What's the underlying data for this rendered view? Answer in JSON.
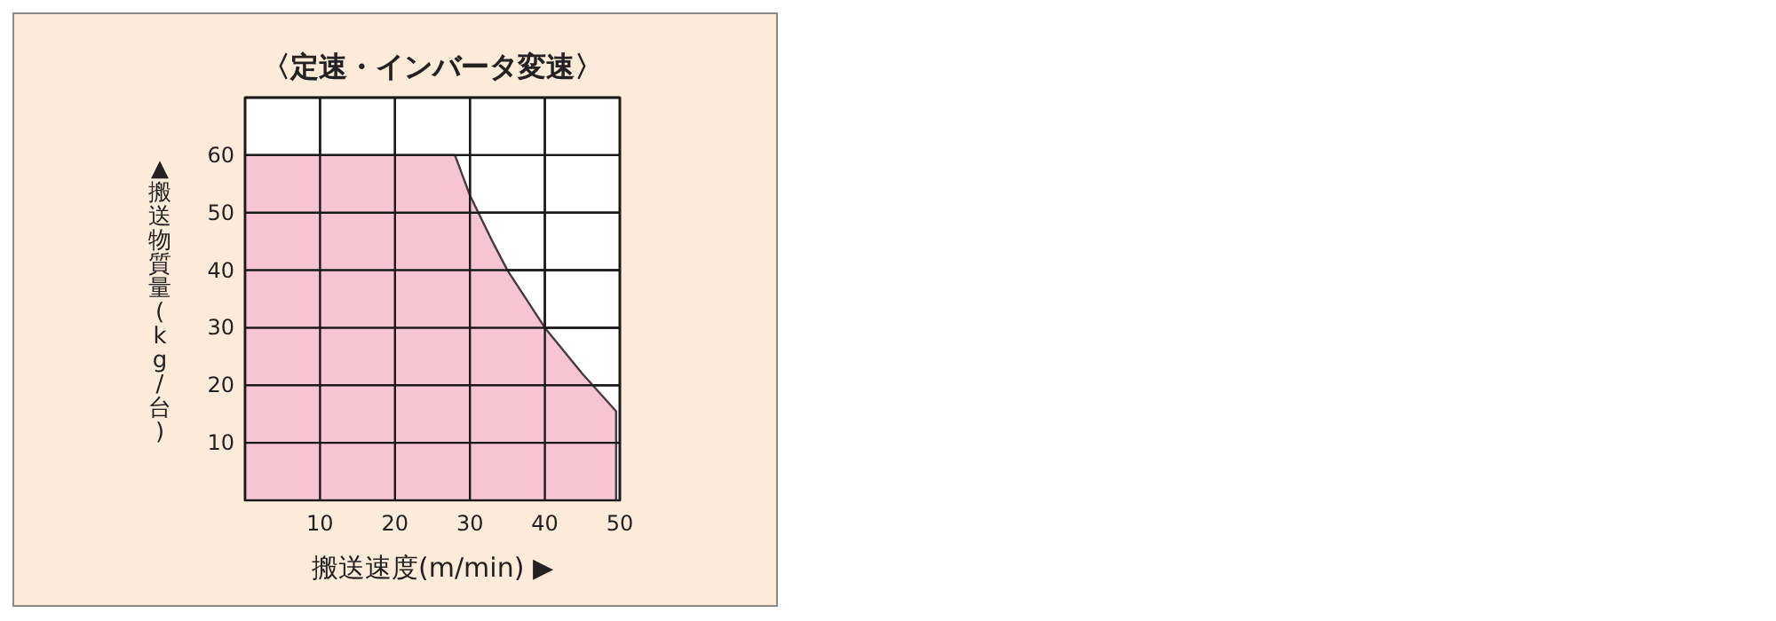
{
  "chart_data": {
    "type": "area",
    "title": "〈定速・インバータ変速〉",
    "xlabel": "搬送速度(m/min) ▶",
    "ylabel": "▲搬送物質量(kg/台)",
    "x": [
      0,
      28,
      30,
      33,
      35,
      40,
      45,
      49.5,
      49.5
    ],
    "series": [
      {
        "color": "#f6c4d2",
        "values": [
          60,
          60,
          53,
          45,
          40,
          30,
          22,
          15.5,
          0
        ]
      }
    ],
    "xlim": [
      0,
      50
    ],
    "ylim": [
      0,
      70
    ],
    "xticks": [
      {
        "value": 0,
        "label": null
      },
      10,
      20,
      30,
      40,
      50
    ],
    "yticks": [
      10,
      20,
      30,
      40,
      50,
      60,
      {
        "value": 70,
        "label": null
      }
    ],
    "grid": true
  }
}
